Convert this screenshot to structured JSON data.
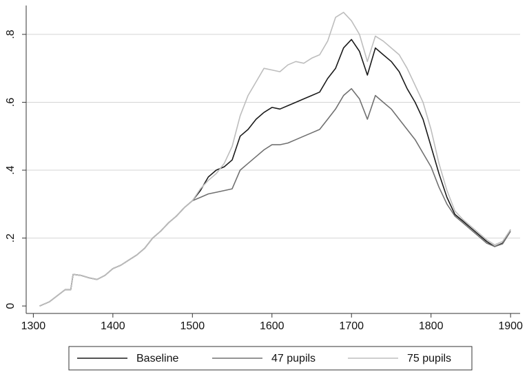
{
  "chart_data": {
    "type": "line",
    "x": [
      1308,
      1320,
      1330,
      1340,
      1347,
      1350,
      1360,
      1370,
      1380,
      1390,
      1400,
      1410,
      1420,
      1430,
      1440,
      1450,
      1460,
      1470,
      1480,
      1490,
      1500,
      1510,
      1520,
      1530,
      1540,
      1550,
      1560,
      1570,
      1580,
      1590,
      1600,
      1610,
      1620,
      1630,
      1640,
      1650,
      1660,
      1670,
      1680,
      1690,
      1700,
      1710,
      1720,
      1730,
      1740,
      1750,
      1760,
      1770,
      1780,
      1790,
      1800,
      1810,
      1820,
      1830,
      1840,
      1850,
      1860,
      1870,
      1880,
      1890,
      1900
    ],
    "series": [
      {
        "name": "Baseline",
        "color": "#1a1a1a",
        "values": [
          0,
          0.012,
          0.03,
          0.048,
          0.048,
          0.093,
          0.09,
          0.083,
          0.078,
          0.09,
          0.11,
          0.12,
          0.135,
          0.15,
          0.17,
          0.2,
          0.22,
          0.245,
          0.265,
          0.29,
          0.31,
          0.34,
          0.38,
          0.4,
          0.41,
          0.43,
          0.5,
          0.52,
          0.55,
          0.57,
          0.585,
          0.58,
          0.59,
          0.6,
          0.61,
          0.62,
          0.63,
          0.67,
          0.7,
          0.76,
          0.785,
          0.75,
          0.68,
          0.76,
          0.74,
          0.72,
          0.69,
          0.64,
          0.6,
          0.55,
          0.47,
          0.39,
          0.32,
          0.27,
          0.25,
          0.23,
          0.21,
          0.19,
          0.175,
          0.185,
          0.225
        ]
      },
      {
        "name": "47 pupils",
        "color": "#707070",
        "values": [
          0,
          0.012,
          0.03,
          0.048,
          0.048,
          0.093,
          0.09,
          0.083,
          0.078,
          0.09,
          0.11,
          0.12,
          0.135,
          0.15,
          0.17,
          0.2,
          0.22,
          0.245,
          0.265,
          0.29,
          0.31,
          0.32,
          0.33,
          0.335,
          0.34,
          0.345,
          0.4,
          0.42,
          0.44,
          0.46,
          0.475,
          0.475,
          0.48,
          0.49,
          0.5,
          0.51,
          0.52,
          0.55,
          0.58,
          0.62,
          0.64,
          0.61,
          0.55,
          0.62,
          0.6,
          0.58,
          0.55,
          0.52,
          0.49,
          0.45,
          0.41,
          0.35,
          0.3,
          0.265,
          0.245,
          0.225,
          0.205,
          0.185,
          0.175,
          0.183,
          0.22
        ]
      },
      {
        "name": "75 pupils",
        "color": "#bdbdbd",
        "values": [
          0,
          0.012,
          0.03,
          0.048,
          0.048,
          0.093,
          0.09,
          0.083,
          0.078,
          0.09,
          0.11,
          0.12,
          0.135,
          0.15,
          0.17,
          0.2,
          0.22,
          0.245,
          0.265,
          0.29,
          0.31,
          0.345,
          0.37,
          0.39,
          0.42,
          0.47,
          0.56,
          0.62,
          0.66,
          0.7,
          0.695,
          0.69,
          0.71,
          0.72,
          0.715,
          0.73,
          0.74,
          0.78,
          0.85,
          0.865,
          0.84,
          0.8,
          0.72,
          0.795,
          0.78,
          0.76,
          0.74,
          0.7,
          0.65,
          0.6,
          0.52,
          0.42,
          0.34,
          0.28,
          0.255,
          0.235,
          0.215,
          0.195,
          0.18,
          0.19,
          0.225
        ]
      }
    ],
    "xlim": [
      1291,
      1912
    ],
    "ylim": [
      -0.022,
      0.885
    ],
    "xticks": [
      1300,
      1400,
      1500,
      1600,
      1700,
      1800,
      1900
    ],
    "yticks": [
      0,
      {
        "value": 0.2,
        "label": ".2"
      },
      {
        "value": 0.4,
        "label": ".4"
      },
      {
        "value": 0.6,
        "label": ".6"
      },
      {
        "value": 0.8,
        "label": ".8"
      }
    ],
    "grid": true,
    "legend": "bottom"
  }
}
